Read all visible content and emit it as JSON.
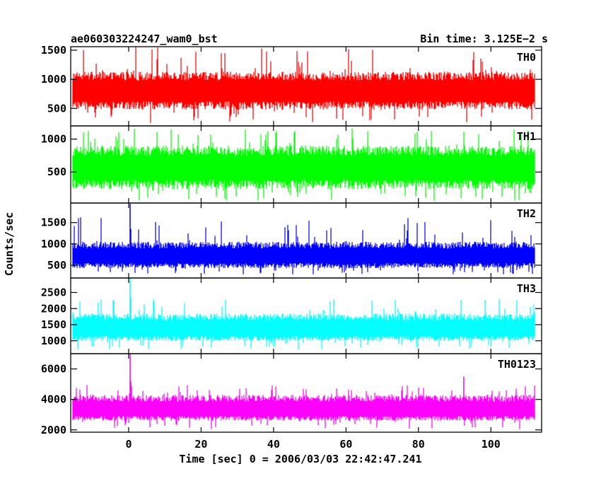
{
  "chart_data": {
    "type": "line",
    "title_left": "ae060303224247_wam0_bst",
    "title_right": "Bin time: 3.125E−2 s",
    "xlabel": "Time [sec] 0 = 2006/03/03 22:42:47.241",
    "ylabel": "Counts/sec",
    "xlim": [
      -16,
      114
    ],
    "x_ticks": [
      0,
      20,
      40,
      60,
      80,
      100
    ],
    "x_ticks_labels": [
      "0",
      "20",
      "40",
      "60",
      "80",
      "100"
    ],
    "x_start": -15.5,
    "x_end": 112,
    "bin_time": 0.03125,
    "panels": [
      {
        "name": "TH0",
        "color": "#ff0000",
        "ylim": [
          200,
          1560
        ],
        "y_ticks": [
          500,
          1000,
          1500
        ],
        "y_tick_labels": [
          "500",
          "1000",
          "1500"
        ],
        "base": 800,
        "p5": 480,
        "p95": 1130,
        "min": 250,
        "max": 1560,
        "spikes": []
      },
      {
        "name": "TH1",
        "color": "#00ff00",
        "ylim": [
          30,
          1200
        ],
        "y_ticks": [
          500,
          1000
        ],
        "y_tick_labels": [
          "500",
          "1000"
        ],
        "base": 560,
        "p5": 240,
        "p95": 900,
        "min": 60,
        "max": 1170,
        "spikes": []
      },
      {
        "name": "TH2",
        "color": "#0000ff",
        "ylim": [
          200,
          1960
        ],
        "y_ticks": [
          500,
          1000,
          1500
        ],
        "y_tick_labels": [
          "500",
          "1000",
          "1500"
        ],
        "base": 700,
        "p5": 430,
        "p95": 1050,
        "min": 280,
        "max": 1650,
        "spikes": [
          {
            "x": 0.4,
            "y": 1940
          },
          {
            "x": 0.6,
            "y": 1350
          }
        ]
      },
      {
        "name": "TH3",
        "color": "#00ffff",
        "ylim": [
          600,
          2950
        ],
        "y_ticks": [
          1000,
          1500,
          2000,
          2500
        ],
        "y_tick_labels": [
          "1000",
          "1500",
          "2000",
          "2500"
        ],
        "base": 1350,
        "p5": 1000,
        "p95": 1850,
        "min": 720,
        "max": 2300,
        "spikes": [
          {
            "x": 0.4,
            "y": 2950
          },
          {
            "x": 0.6,
            "y": 2350
          }
        ]
      },
      {
        "name": "TH0123",
        "color": "#ff00ff",
        "ylim": [
          1850,
          7000
        ],
        "y_ticks": [
          2000,
          4000,
          6000
        ],
        "y_tick_labels": [
          "2000",
          "4000",
          "6000"
        ],
        "base": 3300,
        "p5": 2600,
        "p95": 4300,
        "min": 2050,
        "max": 4950,
        "spikes": [
          {
            "x": 0.4,
            "y": 7000
          },
          {
            "x": 0.6,
            "y": 5200
          },
          {
            "x": 92.5,
            "y": 5500
          }
        ]
      }
    ]
  }
}
